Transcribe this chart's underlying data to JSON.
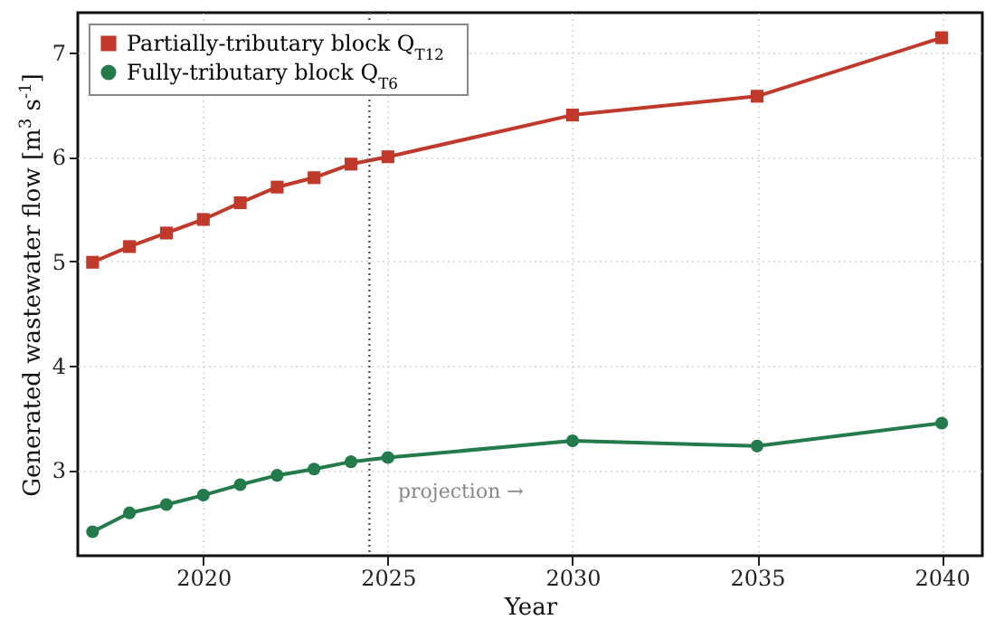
{
  "chart_data": {
    "type": "line",
    "xlabel": "Year",
    "ylabel": "Generated wastewater flow [m$^{3}$ s$^{-1}$]",
    "x": [
      2017,
      2018,
      2019,
      2020,
      2021,
      2022,
      2023,
      2024,
      2025,
      2030,
      2035,
      2040
    ],
    "series": [
      {
        "name": "Partially-tributary block Q$_{T12}$",
        "color": "#c0392b",
        "marker": "square",
        "values": [
          4.99,
          5.14,
          5.27,
          5.4,
          5.56,
          5.71,
          5.8,
          5.93,
          6.0,
          6.4,
          6.58,
          7.14
        ]
      },
      {
        "name": "Fully-tributary block Q$_{T6}$",
        "color": "#237a4a",
        "marker": "circle",
        "values": [
          2.41,
          2.59,
          2.67,
          2.76,
          2.86,
          2.95,
          3.01,
          3.08,
          3.12,
          3.28,
          3.23,
          3.45
        ]
      }
    ],
    "xlim": [
      2016.6,
      2041.1
    ],
    "xticks": [
      2020,
      2025,
      2030,
      2035,
      2040
    ],
    "ylim": [
      2.18,
      7.38
    ],
    "yticks": [
      3,
      4,
      5,
      6,
      7
    ],
    "grid": true,
    "legend": "top left",
    "line_style": "solid",
    "ref_lines": [
      {
        "axis": "x",
        "value": 2024.5,
        "color": "#555555",
        "line_style": "dotted"
      }
    ],
    "annotations": [
      "projection →"
    ]
  }
}
